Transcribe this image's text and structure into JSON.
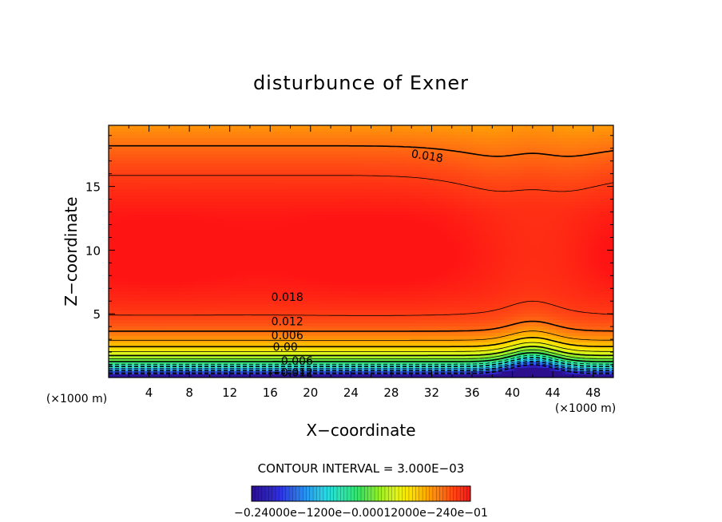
{
  "chart_data": {
    "type": "contour",
    "title": "disturbunce of Exner",
    "xlabel": "X−coordinate",
    "ylabel": "Z−coordinate",
    "x_unit_note": "(×1000 m)",
    "y_unit_note": "(×1000 m)",
    "xlim": [
      0,
      50
    ],
    "ylim": [
      0,
      19.8
    ],
    "x_ticks": [
      "4",
      "8",
      "12",
      "16",
      "20",
      "24",
      "28",
      "32",
      "36",
      "40",
      "44",
      "48"
    ],
    "y_ticks": [
      "5",
      "10",
      "15"
    ],
    "contour_interval_text": "CONTOUR INTERVAL = 3.000E−03",
    "contour_labels": [
      {
        "text": "0.018",
        "x": 31.5,
        "z": 17.1
      },
      {
        "text": "0.018",
        "x": 17.7,
        "z": 6.0
      },
      {
        "text": "0.012",
        "x": 17.7,
        "z": 4.1
      },
      {
        "text": "0.006",
        "x": 17.7,
        "z": 3.0
      },
      {
        "text": "0.00",
        "x": 17.5,
        "z": 2.1
      },
      {
        "text": "−0.006",
        "x": 18.2,
        "z": 1.0
      },
      {
        "text": "−0.012",
        "x": 18.2,
        "z": 0.1
      }
    ],
    "field_range": [
      -0.024,
      0.024
    ],
    "colorbar_labels": "−0.24000e−1200e−0.00012000e−240e−01",
    "colormap": [
      "#2b0f8c",
      "#2f2fe0",
      "#2f8fe8",
      "#2fd8d8",
      "#3fe6a0",
      "#4de04d",
      "#b8f020",
      "#ffff00",
      "#ffc000",
      "#ff8a00",
      "#ff4a10",
      "#ff1a1a"
    ]
  }
}
